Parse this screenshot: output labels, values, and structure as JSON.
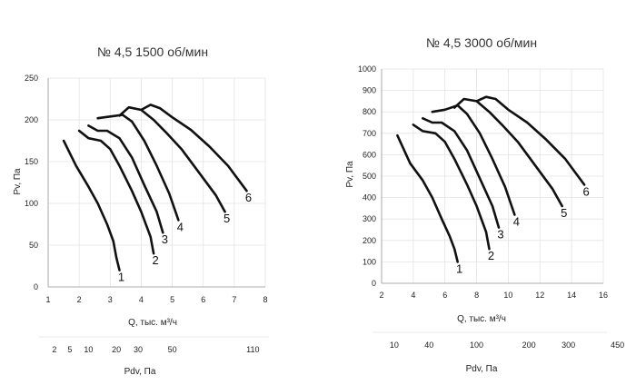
{
  "chart_data": [
    {
      "type": "line",
      "title": "№ 4,5 1500 об/мин",
      "xlabel": "Q, тыс. м³/ч",
      "ylabel": "Pv, Па",
      "xlim": [
        1,
        8
      ],
      "ylim": [
        0,
        250
      ],
      "xticks": [
        1,
        2,
        3,
        4,
        5,
        6,
        7,
        8
      ],
      "yticks": [
        0,
        50,
        100,
        150,
        200,
        250
      ],
      "pdv_label": "Pdv, Па",
      "pdv_ticks": [
        "2",
        "5",
        "10",
        "20",
        "30",
        "50",
        "110"
      ],
      "pdv_q": [
        1.2,
        1.7,
        2.3,
        3.2,
        3.9,
        5.0,
        7.6
      ],
      "series": [
        {
          "name": "1",
          "x": [
            1.5,
            1.9,
            2.3,
            2.6,
            2.9,
            3.1,
            3.2,
            3.3
          ],
          "y": [
            175,
            145,
            120,
            100,
            75,
            55,
            35,
            20
          ]
        },
        {
          "name": "2",
          "x": [
            2.0,
            2.3,
            2.7,
            3.0,
            3.3,
            3.7,
            4.0,
            4.3,
            4.4
          ],
          "y": [
            187,
            178,
            175,
            165,
            145,
            115,
            90,
            60,
            40
          ]
        },
        {
          "name": "3",
          "x": [
            2.3,
            2.6,
            2.9,
            3.3,
            3.7,
            4.1,
            4.5,
            4.7
          ],
          "y": [
            193,
            187,
            187,
            178,
            155,
            122,
            90,
            65
          ]
        },
        {
          "name": "4",
          "x": [
            2.6,
            3.0,
            3.4,
            3.7,
            4.1,
            4.5,
            4.9,
            5.2
          ],
          "y": [
            202,
            204,
            206,
            198,
            175,
            145,
            112,
            80
          ]
        },
        {
          "name": "5",
          "x": [
            3.3,
            3.6,
            4.0,
            4.4,
            4.8,
            5.3,
            5.8,
            6.4,
            6.7
          ],
          "y": [
            205,
            215,
            212,
            200,
            185,
            165,
            140,
            110,
            90
          ]
        },
        {
          "name": "6",
          "x": [
            4.0,
            4.3,
            4.6,
            5.0,
            5.6,
            6.2,
            6.8,
            7.4
          ],
          "y": [
            212,
            218,
            214,
            203,
            188,
            168,
            145,
            115
          ]
        }
      ]
    },
    {
      "type": "line",
      "title": "№ 4,5 3000 об/мин",
      "xlabel": "Q, тыс. м³/ч",
      "ylabel": "Pv, Па",
      "xlim": [
        2,
        16
      ],
      "ylim": [
        0,
        1000
      ],
      "xticks": [
        2,
        4,
        6,
        8,
        10,
        12,
        14,
        16
      ],
      "yticks": [
        0,
        100,
        200,
        300,
        400,
        500,
        600,
        700,
        800,
        900,
        1000
      ],
      "pdv_label": "Pdv, Па",
      "pdv_ticks": [
        "10",
        "40",
        "100",
        "200",
        "300",
        "450"
      ],
      "pdv_q": [
        2.8,
        5.0,
        8.0,
        11.3,
        13.8,
        16.9
      ],
      "series": [
        {
          "name": "1",
          "x": [
            3.0,
            3.8,
            4.6,
            5.2,
            5.8,
            6.3,
            6.6,
            6.8
          ],
          "y": [
            690,
            560,
            480,
            400,
            300,
            220,
            160,
            100
          ]
        },
        {
          "name": "2",
          "x": [
            4.0,
            4.6,
            5.4,
            6.0,
            6.6,
            7.4,
            8.0,
            8.6,
            8.8
          ],
          "y": [
            740,
            710,
            700,
            660,
            580,
            460,
            360,
            240,
            160
          ]
        },
        {
          "name": "3",
          "x": [
            4.6,
            5.2,
            5.8,
            6.6,
            7.4,
            8.2,
            9.0,
            9.4
          ],
          "y": [
            770,
            750,
            750,
            710,
            620,
            490,
            360,
            260
          ]
        },
        {
          "name": "4",
          "x": [
            5.2,
            6.0,
            6.8,
            7.4,
            8.2,
            9.0,
            9.8,
            10.4
          ],
          "y": [
            800,
            810,
            830,
            790,
            700,
            580,
            450,
            320
          ]
        },
        {
          "name": "5",
          "x": [
            6.6,
            7.2,
            8.0,
            8.8,
            9.6,
            10.6,
            11.6,
            12.8,
            13.4
          ],
          "y": [
            820,
            860,
            850,
            800,
            740,
            660,
            560,
            440,
            360
          ]
        },
        {
          "name": "6",
          "x": [
            8.0,
            8.6,
            9.2,
            10.0,
            11.2,
            12.4,
            13.6,
            14.8
          ],
          "y": [
            850,
            870,
            860,
            810,
            750,
            670,
            580,
            460
          ]
        }
      ]
    }
  ]
}
